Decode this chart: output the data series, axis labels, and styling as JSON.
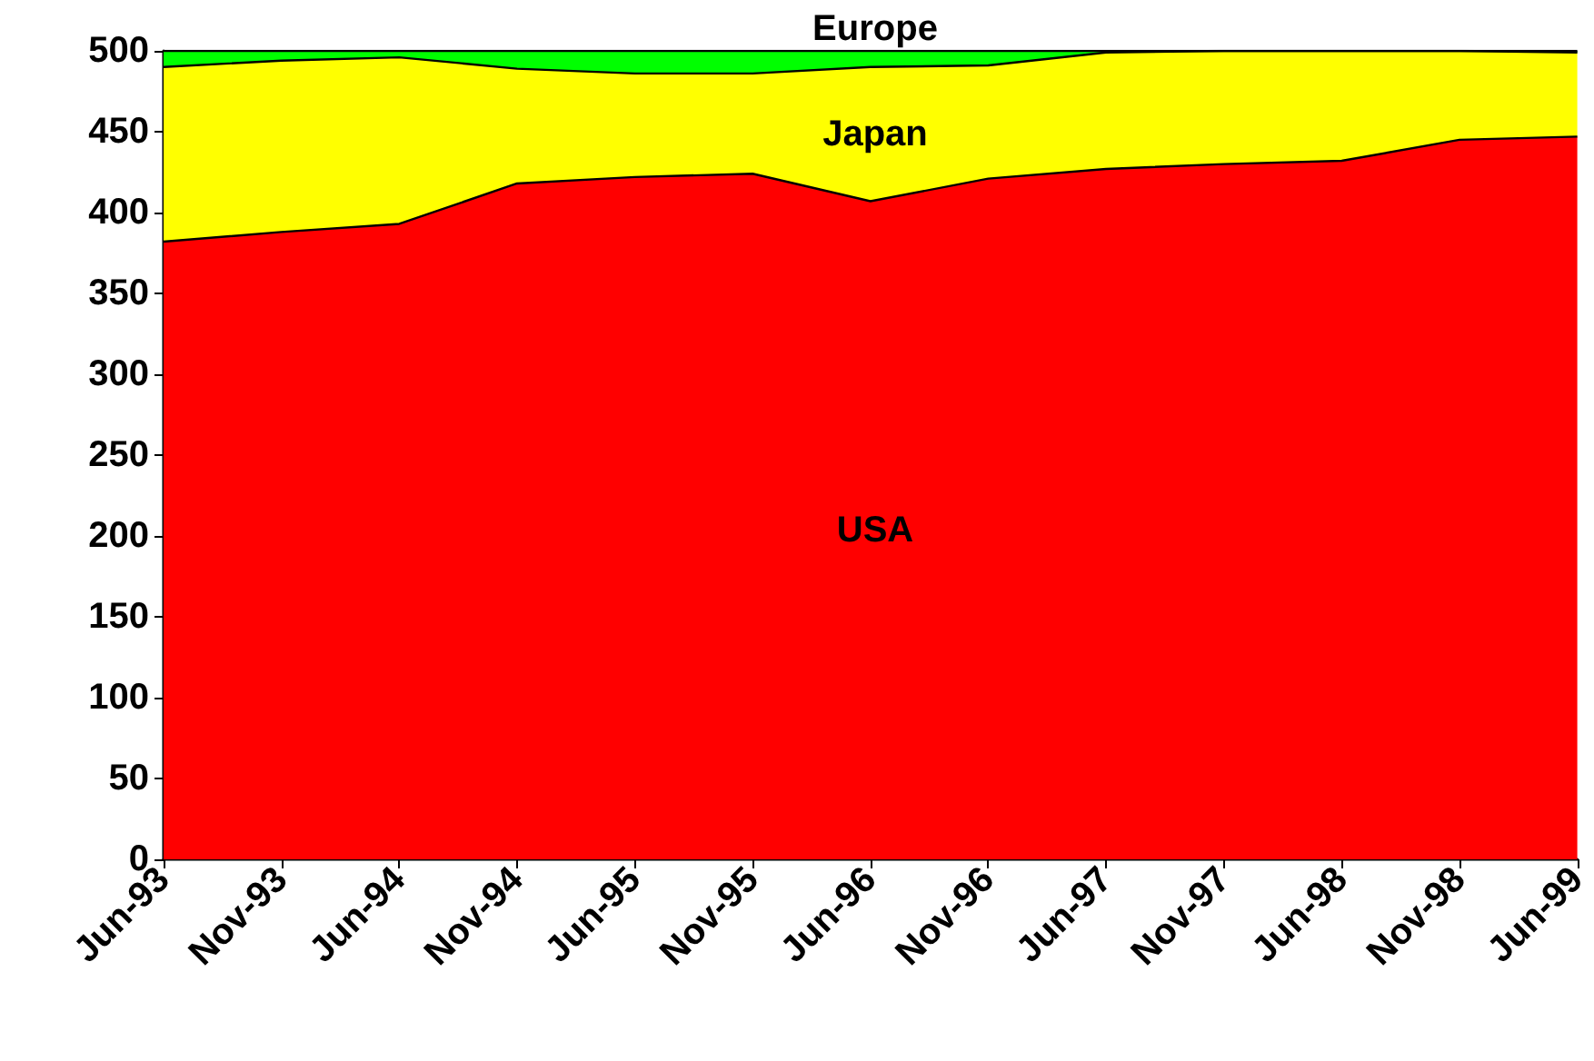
{
  "chart_data": {
    "type": "area",
    "stacked": true,
    "categories": [
      "Jun-93",
      "Nov-93",
      "Jun-94",
      "Nov-94",
      "Jun-95",
      "Nov-95",
      "Jun-96",
      "Nov-96",
      "Jun-97",
      "Nov-97",
      "Jun-98",
      "Nov-98",
      "Jun-99"
    ],
    "series": [
      {
        "name": "USA",
        "color": "#ff0000",
        "values": [
          382,
          388,
          393,
          418,
          422,
          424,
          407,
          421,
          427,
          430,
          432,
          445,
          447
        ]
      },
      {
        "name": "Japan",
        "color": "#ffff00",
        "values": [
          108,
          106,
          103,
          71,
          64,
          62,
          83,
          70,
          72,
          70,
          68,
          55,
          52
        ]
      },
      {
        "name": "Europe",
        "color": "#00ff00",
        "values": [
          10,
          6,
          4,
          11,
          14,
          14,
          10,
          9,
          1,
          0,
          0,
          0,
          1
        ]
      }
    ],
    "ylim": [
      0,
      500
    ],
    "yticks": [
      0,
      50,
      100,
      150,
      200,
      250,
      300,
      350,
      400,
      450,
      500
    ],
    "grid": false,
    "legend": false,
    "marker": "none",
    "line_style": "solid"
  }
}
